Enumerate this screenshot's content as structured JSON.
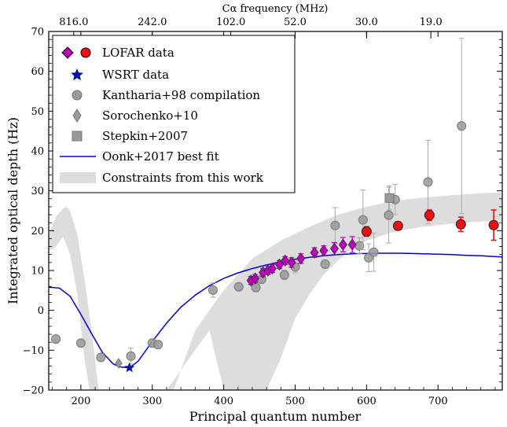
{
  "chart_data": {
    "type": "scatter",
    "xlabel": "Principal quantum number",
    "ylabel": "Integrated optical depth (Hz)",
    "top_axis_label": "Cα frequency (MHz)",
    "xlim": [
      155,
      790
    ],
    "ylim": [
      -20,
      70
    ],
    "x_ticks": [
      200,
      300,
      400,
      500,
      600,
      700
    ],
    "y_ticks": [
      -20,
      -10,
      0,
      10,
      20,
      30,
      40,
      50,
      60,
      70
    ],
    "top_ticks": [
      {
        "n": 190,
        "label": "816.0"
      },
      {
        "n": 300,
        "label": "242.0"
      },
      {
        "n": 410,
        "label": "102.0"
      },
      {
        "n": 500,
        "label": "52.0"
      },
      {
        "n": 600,
        "label": "30.0"
      },
      {
        "n": 690,
        "label": "19.0"
      }
    ],
    "grid": false,
    "legend_position": "top-left",
    "legend": [
      {
        "key": "lofar",
        "label": "LOFAR data"
      },
      {
        "key": "wsrt",
        "label": "WSRT data"
      },
      {
        "key": "kantharia",
        "label": "Kantharia+98 compilation"
      },
      {
        "key": "sorochenko",
        "label": "Sorochenko+10"
      },
      {
        "key": "stepkin",
        "label": "Stepkin+2007"
      },
      {
        "key": "oonk",
        "label": "Oonk+2017 best fit"
      },
      {
        "key": "constraints",
        "label": "Constraints from this work"
      }
    ],
    "colors": {
      "lofar_diamond": "#bb00bb",
      "lofar_circle": "#ee1111",
      "wsrt": "#0011aa",
      "gray_points": "#999999",
      "fit_line": "#0000dd",
      "band": "#dddddd"
    },
    "series": {
      "lofar_diamonds": [
        [
          438,
          7.5,
          1.0
        ],
        [
          444,
          8.0,
          1.0
        ],
        [
          455,
          9.5,
          1.0
        ],
        [
          462,
          10.0,
          1.0
        ],
        [
          468,
          10.5,
          1.0
        ],
        [
          478,
          11.5,
          1.0
        ],
        [
          486,
          12.5,
          1.0
        ],
        [
          495,
          12.0,
          1.2
        ],
        [
          508,
          13.0,
          1.2
        ],
        [
          527,
          14.5,
          1.2
        ],
        [
          540,
          15.0,
          1.2
        ],
        [
          555,
          15.5,
          1.5
        ],
        [
          567,
          16.5,
          1.8
        ],
        [
          580,
          16.5,
          2.0
        ]
      ],
      "lofar_circles": [
        [
          600,
          19.8,
          1.2
        ],
        [
          644,
          21.2,
          1.0
        ],
        [
          688,
          23.9,
          1.3
        ],
        [
          732,
          21.6,
          1.8
        ],
        [
          778,
          21.4,
          3.8
        ]
      ],
      "wsrt": [
        [
          268,
          -14.4
        ]
      ],
      "kantharia": [
        [
          165,
          -7.2,
          1.0
        ],
        [
          200,
          -8.2,
          0.8
        ],
        [
          228,
          -11.8,
          1.0
        ],
        [
          270,
          -11.5,
          2.0
        ],
        [
          300,
          -8.2,
          1.0
        ],
        [
          308,
          -8.6,
          1.0
        ],
        [
          385,
          5.1,
          1.8
        ],
        [
          421,
          5.9,
          1.0
        ],
        [
          445,
          5.7,
          1.0
        ],
        [
          453,
          7.8,
          1.0
        ],
        [
          485,
          8.9,
          1.2
        ],
        [
          500,
          10.9,
          1.5
        ],
        [
          542,
          11.6,
          1.0
        ],
        [
          556,
          21.3,
          4.5
        ],
        [
          590,
          16.2,
          2.0
        ],
        [
          595,
          22.7,
          7.5
        ],
        [
          603,
          13.2,
          3.5
        ],
        [
          610,
          14.6,
          4.8
        ],
        [
          631,
          23.9,
          7.0
        ],
        [
          640,
          27.8,
          3.8
        ],
        [
          686,
          32.2,
          10.5
        ],
        [
          733,
          46.3,
          22.0
        ]
      ],
      "sorochenko": [
        [
          253,
          -13.3
        ]
      ],
      "stepkin": [
        [
          632,
          28.2,
          3.0
        ]
      ]
    },
    "fit_curve": [
      [
        155,
        5.8
      ],
      [
        170,
        5.6
      ],
      [
        185,
        3.5
      ],
      [
        200,
        -1.0
      ],
      [
        215,
        -5.8
      ],
      [
        230,
        -10.5
      ],
      [
        245,
        -13.4
      ],
      [
        255,
        -14.2
      ],
      [
        268,
        -14.4
      ],
      [
        280,
        -12.8
      ],
      [
        300,
        -7.8
      ],
      [
        320,
        -3.2
      ],
      [
        340,
        0.8
      ],
      [
        360,
        3.8
      ],
      [
        380,
        6.2
      ],
      [
        400,
        8.0
      ],
      [
        420,
        9.4
      ],
      [
        440,
        10.5
      ],
      [
        460,
        11.4
      ],
      [
        480,
        12.2
      ],
      [
        500,
        12.8
      ],
      [
        520,
        13.3
      ],
      [
        540,
        13.7
      ],
      [
        560,
        14.0
      ],
      [
        580,
        14.2
      ],
      [
        600,
        14.3
      ],
      [
        620,
        14.35
      ],
      [
        640,
        14.35
      ],
      [
        660,
        14.3
      ],
      [
        680,
        14.2
      ],
      [
        700,
        14.1
      ],
      [
        720,
        14.0
      ],
      [
        740,
        13.8
      ],
      [
        760,
        13.7
      ],
      [
        790,
        13.4
      ]
    ],
    "band_upper": [
      [
        155,
        19
      ],
      [
        165,
        23.5
      ],
      [
        175,
        25.5
      ],
      [
        180,
        26
      ],
      [
        185,
        25
      ],
      [
        195,
        19
      ],
      [
        205,
        8
      ],
      [
        215,
        -5
      ],
      [
        225,
        -20
      ],
      [
        330,
        -20
      ],
      [
        360,
        -5
      ],
      [
        400,
        5
      ],
      [
        440,
        13
      ],
      [
        480,
        17.5
      ],
      [
        520,
        21
      ],
      [
        560,
        24
      ],
      [
        600,
        26
      ],
      [
        640,
        27.5
      ],
      [
        680,
        28.3
      ],
      [
        720,
        28.9
      ],
      [
        760,
        29.4
      ],
      [
        790,
        29.6
      ]
    ],
    "band_lower": [
      [
        155,
        15
      ],
      [
        165,
        16
      ],
      [
        175,
        18.5
      ],
      [
        185,
        14
      ],
      [
        195,
        4
      ],
      [
        205,
        -12
      ],
      [
        212,
        -20
      ],
      [
        320,
        -20
      ],
      [
        340,
        -15
      ],
      [
        360,
        -10
      ],
      [
        380,
        -5
      ],
      [
        400,
        -20
      ],
      [
        460,
        -20
      ],
      [
        480,
        -12
      ],
      [
        500,
        -2
      ],
      [
        520,
        4
      ],
      [
        540,
        9
      ],
      [
        560,
        12.5
      ],
      [
        580,
        15.5
      ],
      [
        600,
        17.5
      ],
      [
        640,
        19.8
      ],
      [
        680,
        21
      ],
      [
        720,
        21.8
      ],
      [
        760,
        22.3
      ],
      [
        790,
        22.5
      ]
    ]
  }
}
